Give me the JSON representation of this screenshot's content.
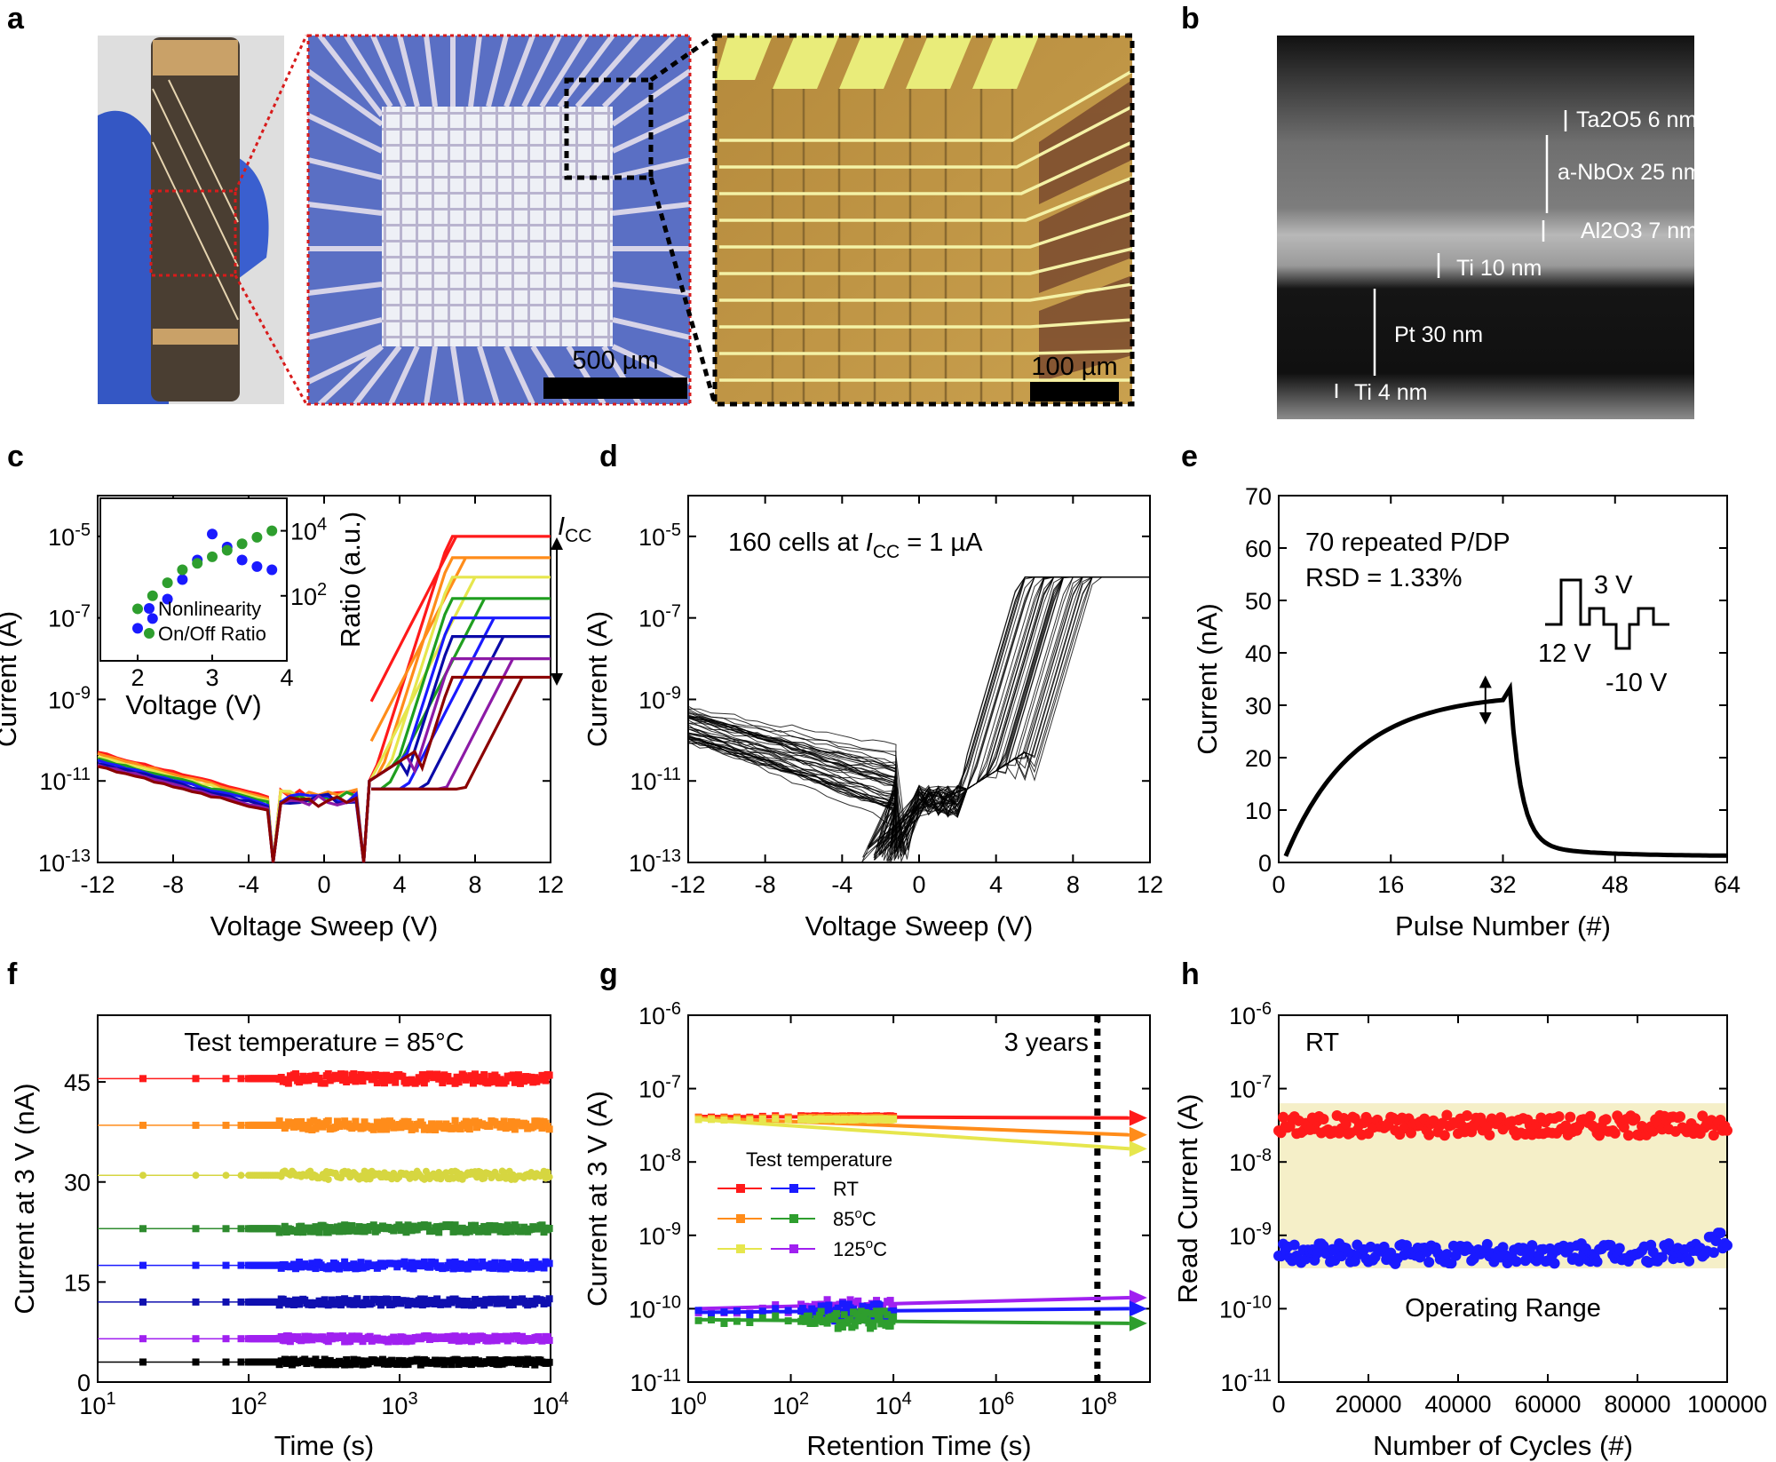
{
  "panel_labels": [
    "a",
    "b",
    "c",
    "d",
    "e",
    "f",
    "g",
    "h"
  ],
  "panel_a": {
    "scalebar_mid": "500 µm",
    "scalebar_right": "100 µm"
  },
  "panel_b": {
    "layers": [
      {
        "text": "Ta2O5 6 nm"
      },
      {
        "text": "a-NbOx 25 nm"
      },
      {
        "text": "Al2O3 7 nm"
      },
      {
        "text": "Ti 10 nm"
      },
      {
        "text": "Pt 30 nm"
      },
      {
        "text": "Ti 4 nm"
      }
    ]
  },
  "chart_data": [
    {
      "id": "c",
      "type": "line",
      "xlabel": "Voltage Sweep (V)",
      "ylabel": "Current (A)",
      "xlim": [
        -12,
        12
      ],
      "ylim_log10": [
        -13,
        -4
      ],
      "xticks": [
        -12,
        -8,
        -4,
        0,
        4,
        8,
        12
      ],
      "yticks": [
        "10^-13",
        "10^-11",
        "10^-9",
        "10^-7",
        "10^-5"
      ],
      "icc_label": "I_CC",
      "compliance_levels_A": [
        1e-05,
        3e-06,
        1e-06,
        3e-07,
        1e-07,
        3.5e-08,
        1e-08,
        3.5e-09
      ],
      "series_colors": [
        "#ff1a1a",
        "#ff8c1a",
        "#e6e64d",
        "#1f9e1f",
        "#1a1aff",
        "#0a0aa8",
        "#8c1aa6",
        "#8b0000"
      ],
      "inset": {
        "type": "scatter",
        "xlabel": "Voltage (V)",
        "ylabel": "Ratio (a.u.)",
        "xlim": [
          1.5,
          4
        ],
        "ylim_log10": [
          0,
          5
        ],
        "xticks": [
          2,
          3,
          4
        ],
        "yticks": [
          "10^2",
          "10^4"
        ],
        "series": [
          {
            "name": "Nonlinearity",
            "color": "#1a1aff",
            "x": [
              2.0,
              2.2,
              2.4,
              2.6,
              2.8,
              3.0,
              3.2,
              3.4,
              3.6,
              3.8
            ],
            "y_log10": [
              1.0,
              1.3,
              1.9,
              2.5,
              3.1,
              3.9,
              3.5,
              3.1,
              2.9,
              2.8
            ]
          },
          {
            "name": "On/Off Ratio",
            "color": "#2e9e2e",
            "x": [
              2.0,
              2.2,
              2.4,
              2.6,
              2.8,
              3.0,
              3.2,
              3.4,
              3.6,
              3.8
            ],
            "y_log10": [
              1.6,
              2.0,
              2.4,
              2.8,
              3.0,
              3.2,
              3.4,
              3.6,
              3.8,
              4.0
            ]
          }
        ]
      }
    },
    {
      "id": "d",
      "type": "line",
      "xlabel": "Voltage Sweep (V)",
      "ylabel": "Current (A)",
      "xlim": [
        -12,
        12
      ],
      "ylim_log10": [
        -13,
        -4
      ],
      "xticks": [
        -12,
        -8,
        -4,
        0,
        4,
        8,
        12
      ],
      "yticks": [
        "10^-13",
        "10^-11",
        "10^-9",
        "10^-7",
        "10^-5"
      ],
      "annotation": "160 cells at I_CC = 1 µA",
      "compliance_A": 1e-06
    },
    {
      "id": "e",
      "type": "line",
      "xlabel": "Pulse Number (#)",
      "ylabel": "Current (nA)",
      "xlim": [
        0,
        64
      ],
      "ylim": [
        0,
        70
      ],
      "xticks": [
        0,
        16,
        32,
        48,
        64
      ],
      "yticks": [
        0,
        10,
        20,
        30,
        40,
        50,
        60,
        70
      ],
      "annotation_1": "70 repeated P/DP",
      "annotation_2": "RSD = 1.33%",
      "pulse_labels": [
        "3 V",
        "12 V",
        "-10 V"
      ],
      "potentiation": {
        "x_start": 1,
        "x_end": 32,
        "y_start": 1.2,
        "y_end": 31
      },
      "depression": {
        "x_start": 33,
        "x_end": 64,
        "y_start": 31,
        "y_end": 1.2
      }
    },
    {
      "id": "f",
      "type": "scatter",
      "xlabel": "Time (s)",
      "ylabel": "Current at 3 V (nA)",
      "xlim_log10": [
        1,
        4
      ],
      "ylim": [
        0,
        55
      ],
      "xticks": [
        "10^1",
        "10^2",
        "10^3",
        "10^4"
      ],
      "yticks": [
        0,
        15,
        30,
        45
      ],
      "annotation": "Test temperature = 85°C",
      "series": [
        {
          "level": 45.5,
          "color": "#ff1a1a",
          "marker": "square"
        },
        {
          "level": 38.5,
          "color": "#ff8c1a",
          "marker": "square"
        },
        {
          "level": 31.0,
          "color": "#d6d640",
          "marker": "circle"
        },
        {
          "level": 23.0,
          "color": "#2e8b2e",
          "marker": "square"
        },
        {
          "level": 17.5,
          "color": "#1a1aff",
          "marker": "square"
        },
        {
          "level": 12.0,
          "color": "#1010b0",
          "marker": "square"
        },
        {
          "level": 6.5,
          "color": "#a020f0",
          "marker": "square"
        },
        {
          "level": 3.0,
          "color": "#000000",
          "marker": "square"
        }
      ]
    },
    {
      "id": "g",
      "type": "scatter",
      "xlabel": "Retention Time (s)",
      "ylabel": "Current at 3 V (A)",
      "xlim_log10": [
        0,
        9
      ],
      "ylim_log10": [
        -11,
        -6
      ],
      "xticks": [
        "10^0",
        "10^2",
        "10^4",
        "10^6",
        "10^8"
      ],
      "yticks": [
        "10^-11",
        "10^-10",
        "10^-9",
        "10^-8",
        "10^-7",
        "10^-6"
      ],
      "annotation": "3 years",
      "three_years_s": 94608000,
      "legend_title": "Test temperature",
      "legend": [
        {
          "label": "RT",
          "colors": [
            "#ff1a1a",
            "#1a1aff"
          ]
        },
        {
          "label": "85oC",
          "colors": [
            "#ff8c1a",
            "#2e9e2e"
          ]
        },
        {
          "label": "125oC",
          "colors": [
            "#e6e64d",
            "#a020f0"
          ]
        }
      ],
      "high_state": [
        {
          "name": "RT",
          "color": "#ff1a1a",
          "start_log10": -7.38,
          "end_log10": -7.4
        },
        {
          "name": "85oC",
          "color": "#ff8c1a",
          "start_log10": -7.4,
          "end_log10": -7.63
        },
        {
          "name": "125oC",
          "color": "#e6e64d",
          "start_log10": -7.42,
          "end_log10": -7.82
        }
      ],
      "low_state": [
        {
          "name": "125oC",
          "color": "#a020f0",
          "start_log10": -10.0,
          "end_log10": -9.85
        },
        {
          "name": "RT",
          "color": "#1a1aff",
          "start_log10": -10.05,
          "end_log10": -10.0
        },
        {
          "name": "85oC",
          "color": "#2e9e2e",
          "start_log10": -10.15,
          "end_log10": -10.2
        }
      ]
    },
    {
      "id": "h",
      "type": "scatter",
      "xlabel": "Number of Cycles (#)",
      "ylabel": "Read Current (A)",
      "xlim": [
        0,
        100000
      ],
      "ylim_log10": [
        -11,
        -6
      ],
      "xticks": [
        0,
        20000,
        40000,
        60000,
        80000,
        100000
      ],
      "yticks": [
        "10^-11",
        "10^-10",
        "10^-9",
        "10^-8",
        "10^-7",
        "10^-6"
      ],
      "annotation_rt": "RT",
      "annotation_range": "Operating Range",
      "operating_range_log10": [
        -9.45,
        -7.2
      ],
      "series": [
        {
          "name": "high",
          "color": "#ff1a1a",
          "mean_log10": -7.5
        },
        {
          "name": "low",
          "color": "#1a1aff",
          "mean_log10": -9.25
        }
      ]
    }
  ]
}
